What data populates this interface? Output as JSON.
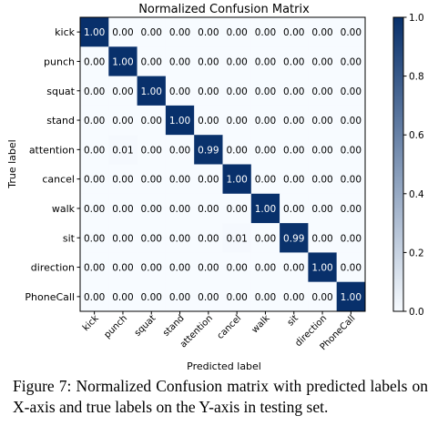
{
  "chart_data": {
    "type": "heatmap",
    "title": "Normalized Confusion Matrix",
    "xlabel": "Predicted label",
    "ylabel": "True label",
    "categories": [
      "kick",
      "punch",
      "squat",
      "stand",
      "attention",
      "cancel",
      "walk",
      "sit",
      "direction",
      "PhoneCall"
    ],
    "values": [
      [
        1.0,
        0.0,
        0.0,
        0.0,
        0.0,
        0.0,
        0.0,
        0.0,
        0.0,
        0.0
      ],
      [
        0.0,
        1.0,
        0.0,
        0.0,
        0.0,
        0.0,
        0.0,
        0.0,
        0.0,
        0.0
      ],
      [
        0.0,
        0.0,
        1.0,
        0.0,
        0.0,
        0.0,
        0.0,
        0.0,
        0.0,
        0.0
      ],
      [
        0.0,
        0.0,
        0.0,
        1.0,
        0.0,
        0.0,
        0.0,
        0.0,
        0.0,
        0.0
      ],
      [
        0.0,
        0.01,
        0.0,
        0.0,
        0.99,
        0.0,
        0.0,
        0.0,
        0.0,
        0.0
      ],
      [
        0.0,
        0.0,
        0.0,
        0.0,
        0.0,
        1.0,
        0.0,
        0.0,
        0.0,
        0.0
      ],
      [
        0.0,
        0.0,
        0.0,
        0.0,
        0.0,
        0.0,
        1.0,
        0.0,
        0.0,
        0.0
      ],
      [
        0.0,
        0.0,
        0.0,
        0.0,
        0.0,
        0.01,
        0.0,
        0.99,
        0.0,
        0.0
      ],
      [
        0.0,
        0.0,
        0.0,
        0.0,
        0.0,
        0.0,
        0.0,
        0.0,
        1.0,
        0.0
      ],
      [
        0.0,
        0.0,
        0.0,
        0.0,
        0.0,
        0.0,
        0.0,
        0.0,
        0.0,
        1.0
      ]
    ],
    "colorbar": {
      "range": [
        0.0,
        1.0
      ],
      "ticks": [
        "0.0",
        "0.2",
        "0.4",
        "0.6",
        "0.8",
        "1.0"
      ],
      "low_color": "#f7fbff",
      "high_color": "#08306b"
    },
    "grid": false
  },
  "caption": "Figure 7: Normalized Confusion matrix with predicted labels on X-axis and true labels on the Y-axis in testing set."
}
